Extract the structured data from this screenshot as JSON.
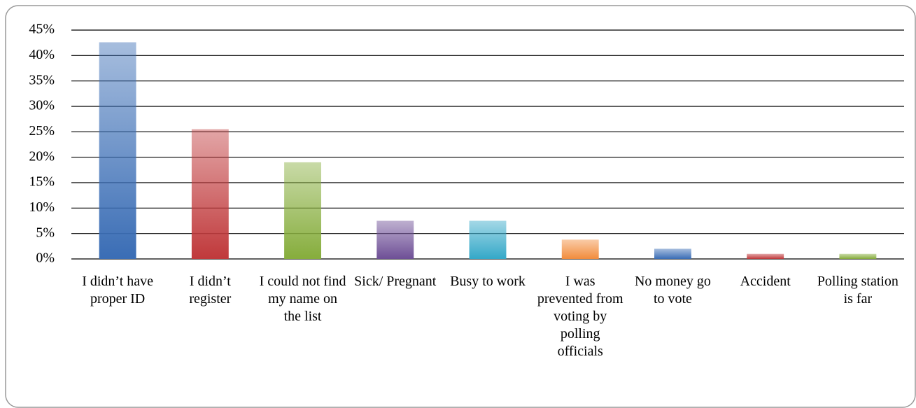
{
  "chart_data": {
    "type": "bar",
    "categories": [
      "I didn’t have proper ID",
      "I didn’t register",
      "I could not find my name on the list",
      "Sick/ Pregnant",
      "Busy to work",
      "I was prevented from voting by polling officials",
      "No money go to vote",
      "Accident",
      "Polling station is far"
    ],
    "values": [
      42.6,
      25.5,
      19,
      7.5,
      7.5,
      3.8,
      2,
      1,
      1
    ],
    "colors": [
      "#3a6db5",
      "#c0393b",
      "#86ad3c",
      "#6e4f96",
      "#34a8c8",
      "#f28c3c",
      "#3a6db5",
      "#c0393b",
      "#86ad3c"
    ],
    "ylim": [
      0,
      45
    ],
    "yticks": [
      {
        "value": 0,
        "label": "0%"
      },
      {
        "value": 5,
        "label": "5%"
      },
      {
        "value": 10,
        "label": "10%"
      },
      {
        "value": 15,
        "label": "15%"
      },
      {
        "value": 20,
        "label": "20%"
      },
      {
        "value": 25,
        "label": "25%"
      },
      {
        "value": 30,
        "label": "30%"
      },
      {
        "value": 35,
        "label": "35%"
      },
      {
        "value": 40,
        "label": "40%"
      },
      {
        "value": 45,
        "label": "45%"
      }
    ],
    "grid": true
  }
}
